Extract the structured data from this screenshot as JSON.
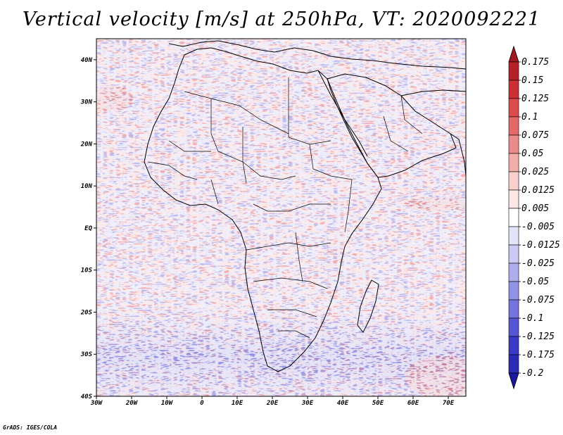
{
  "title": "Vertical velocity [m/s] at 250hPa, VT: 2020092221",
  "credit": "GrADS: IGES/COLA",
  "map": {
    "lon_range": [
      -30,
      75
    ],
    "lat_range": [
      -40,
      45
    ],
    "lat_ticks": [
      {
        "value": 40,
        "label": "40N"
      },
      {
        "value": 30,
        "label": "30N"
      },
      {
        "value": 20,
        "label": "20N"
      },
      {
        "value": 10,
        "label": "10N"
      },
      {
        "value": 0,
        "label": "EQ"
      },
      {
        "value": -10,
        "label": "10S"
      },
      {
        "value": -20,
        "label": "20S"
      },
      {
        "value": -30,
        "label": "30S"
      },
      {
        "value": -40,
        "label": "40S"
      }
    ],
    "lon_ticks": [
      {
        "value": -30,
        "label": "30W"
      },
      {
        "value": -20,
        "label": "20W"
      },
      {
        "value": -10,
        "label": "10W"
      },
      {
        "value": 0,
        "label": "0"
      },
      {
        "value": 10,
        "label": "10E"
      },
      {
        "value": 20,
        "label": "20E"
      },
      {
        "value": 30,
        "label": "30E"
      },
      {
        "value": 40,
        "label": "40E"
      },
      {
        "value": 50,
        "label": "50E"
      },
      {
        "value": 60,
        "label": "60E"
      },
      {
        "value": 70,
        "label": "70E"
      }
    ]
  },
  "colorbar": {
    "levels": [
      "0.175",
      "0.15",
      "0.125",
      "0.1",
      "0.075",
      "0.05",
      "0.025",
      "0.0125",
      "0.005",
      "-0.005",
      "-0.0125",
      "-0.025",
      "-0.05",
      "-0.075",
      "-0.1",
      "-0.125",
      "-0.175",
      "-0.2"
    ],
    "colors": [
      "#a01820",
      "#b82028",
      "#cc3036",
      "#dc4a4c",
      "#e46a6a",
      "#ec8c8a",
      "#f2aeaa",
      "#f8d0cc",
      "#fbe8e6",
      "#ffffff",
      "#e4e4f8",
      "#cacaf2",
      "#aeaeec",
      "#9292e6",
      "#7474de",
      "#5656d4",
      "#3a3ac6",
      "#2a2ab4",
      "#1818a0"
    ]
  }
}
